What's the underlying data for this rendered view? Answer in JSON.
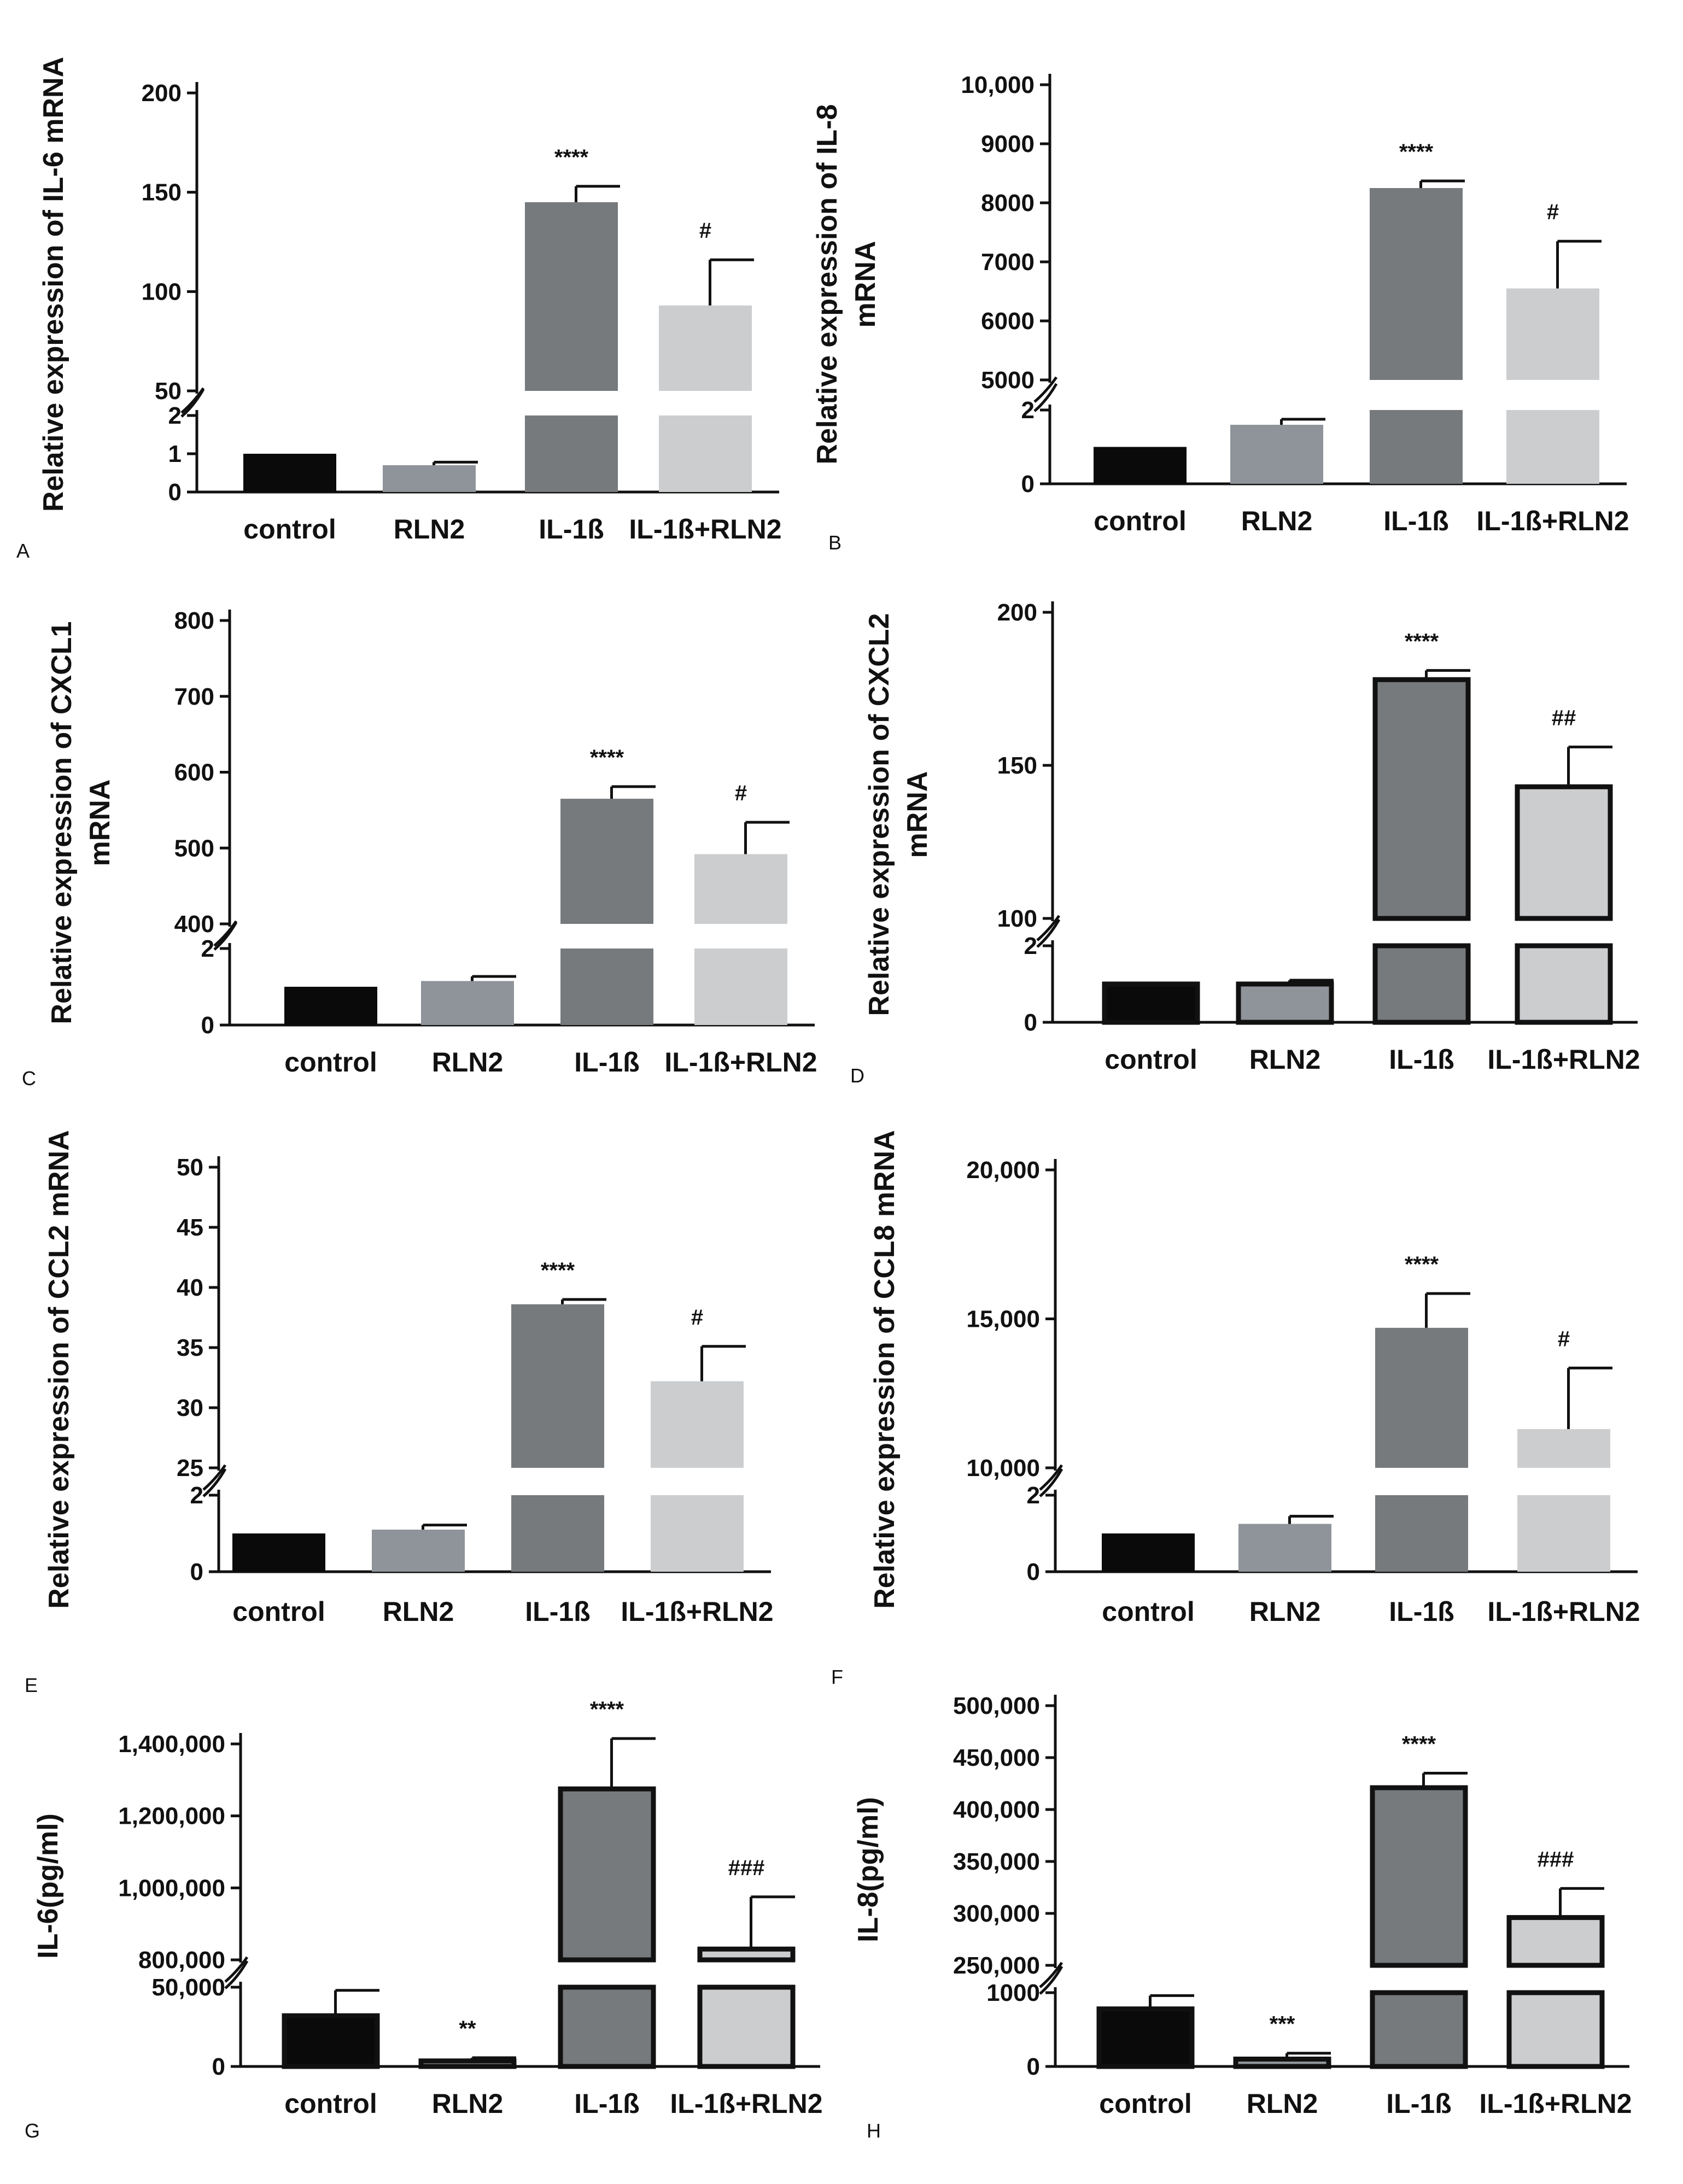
{
  "chart_data": [
    {
      "panel": "A",
      "type": "bar",
      "ylabel": [
        "Relative expression of IL-6 mRNA"
      ],
      "categories": [
        "control",
        "RLN2",
        "IL-1ß",
        "IL-1ß+RLN2"
      ],
      "values": [
        1,
        0.7,
        145,
        93
      ],
      "errors": [
        0,
        0.08,
        8,
        23
      ],
      "significance": [
        "",
        "",
        "****",
        "#"
      ],
      "colors": [
        "#0a0a0a",
        "#8e949a",
        "#767a7d",
        "#cbcdcf"
      ],
      "bar_style": "solid",
      "axis_break": {
        "low": 2,
        "high": 50
      },
      "low_ticks": [
        "0",
        "1",
        "2"
      ],
      "low_tick_values": [
        0,
        1,
        2
      ],
      "high_ticks": [
        "50",
        "100",
        "150",
        "200"
      ],
      "high_tick_values": [
        50,
        100,
        150,
        200
      ]
    },
    {
      "panel": "B",
      "type": "bar",
      "ylabel": [
        "Relative expression of IL-8",
        "mRNA"
      ],
      "categories": [
        "control",
        "RLN2",
        "IL-1ß",
        "IL-1ß+RLN2"
      ],
      "values": [
        1,
        1.6,
        8250,
        6550
      ],
      "errors": [
        0,
        0.15,
        120,
        800
      ],
      "significance": [
        "",
        "",
        "****",
        "#"
      ],
      "colors": [
        "#0a0a0a",
        "#8e949a",
        "#767a7d",
        "#cbcdcf"
      ],
      "bar_style": "solid",
      "axis_break": {
        "low": 2,
        "high": 5000
      },
      "low_ticks": [
        "0",
        "2"
      ],
      "low_tick_values": [
        0,
        2
      ],
      "high_ticks": [
        "5000",
        "6000",
        "7000",
        "8000",
        "9000",
        "10,000"
      ],
      "high_tick_values": [
        5000,
        6000,
        7000,
        8000,
        9000,
        10000
      ]
    },
    {
      "panel": "C",
      "type": "bar",
      "ylabel": [
        "Relative expression of CXCL1",
        "mRNA"
      ],
      "categories": [
        "control",
        "RLN2",
        "IL-1ß",
        "IL-1ß+RLN2"
      ],
      "values": [
        1,
        1.15,
        565,
        492
      ],
      "errors": [
        0,
        0.12,
        16,
        42
      ],
      "significance": [
        "",
        "",
        "****",
        "#"
      ],
      "colors": [
        "#0a0a0a",
        "#8e949a",
        "#767a7d",
        "#cbcdcf"
      ],
      "bar_style": "solid",
      "axis_break": {
        "low": 2,
        "high": 400
      },
      "low_ticks": [
        "0",
        "2"
      ],
      "low_tick_values": [
        0,
        2
      ],
      "high_ticks": [
        "400",
        "500",
        "600",
        "700",
        "800"
      ],
      "high_tick_values": [
        400,
        500,
        600,
        700,
        800
      ]
    },
    {
      "panel": "D",
      "type": "bar",
      "ylabel": [
        "Relative expression of CXCL2",
        "mRNA"
      ],
      "categories": [
        "control",
        "RLN2",
        "IL-1ß",
        "IL-1ß+RLN2"
      ],
      "values": [
        1,
        1,
        178,
        143
      ],
      "errors": [
        0,
        0.1,
        3,
        13
      ],
      "significance": [
        "",
        "",
        "****",
        "##"
      ],
      "colors": [
        "#0a0a0a",
        "#8e949a",
        "#767a7d",
        "#cbcdcf"
      ],
      "bar_style": "outlined",
      "axis_break": {
        "low": 2,
        "high": 100
      },
      "low_ticks": [
        "0",
        "2"
      ],
      "low_tick_values": [
        0,
        2
      ],
      "high_ticks": [
        "100",
        "150",
        "200"
      ],
      "high_tick_values": [
        100,
        150,
        200
      ]
    },
    {
      "panel": "E",
      "type": "bar",
      "ylabel": [
        "Relative expression of CCL2 mRNA"
      ],
      "categories": [
        "control",
        "RLN2",
        "IL-1ß",
        "IL-1ß+RLN2"
      ],
      "values": [
        1,
        1.1,
        38.6,
        32.2
      ],
      "errors": [
        0,
        0.12,
        0.4,
        2.9
      ],
      "significance": [
        "",
        "",
        "****",
        "#"
      ],
      "colors": [
        "#0a0a0a",
        "#8e949a",
        "#767a7d",
        "#cbcdcf"
      ],
      "bar_style": "solid",
      "axis_break": {
        "low": 2,
        "high": 25
      },
      "low_ticks": [
        "0",
        "2"
      ],
      "low_tick_values": [
        0,
        2
      ],
      "high_ticks": [
        "25",
        "30",
        "35",
        "40",
        "45",
        "50"
      ],
      "high_tick_values": [
        25,
        30,
        35,
        40,
        45,
        50
      ]
    },
    {
      "panel": "F",
      "type": "bar",
      "ylabel": [
        "Relative expression of CCL8 mRNA"
      ],
      "categories": [
        "control",
        "RLN2",
        "IL-1ß",
        "IL-1ß+RLN2"
      ],
      "values": [
        1,
        1.25,
        14700,
        11300
      ],
      "errors": [
        0,
        0.2,
        1150,
        2050
      ],
      "significance": [
        "",
        "",
        "****",
        "#"
      ],
      "colors": [
        "#0a0a0a",
        "#8e949a",
        "#767a7d",
        "#cbcdcf"
      ],
      "bar_style": "solid",
      "axis_break": {
        "low": 2,
        "high": 10000
      },
      "low_ticks": [
        "0",
        "2"
      ],
      "low_tick_values": [
        0,
        2
      ],
      "high_ticks": [
        "10,000",
        "15,000",
        "20,000"
      ],
      "high_tick_values": [
        10000,
        15000,
        20000
      ]
    },
    {
      "panel": "G",
      "type": "bar",
      "ylabel": [
        "IL-6(pg/ml)"
      ],
      "categories": [
        "control",
        "RLN2",
        "IL-1ß",
        "IL-1ß+RLN2"
      ],
      "values": [
        32000,
        3500,
        1275000,
        830000
      ],
      "errors": [
        16000,
        2000,
        140000,
        145000
      ],
      "significance": [
        "",
        "**",
        "****",
        "###"
      ],
      "colors": [
        "#0a0a0a",
        "#8e949a",
        "#767a7d",
        "#cbcdcf"
      ],
      "bar_style": "outlined",
      "axis_break": {
        "low": 50000,
        "high": 800000
      },
      "low_ticks": [
        "0",
        "50,000"
      ],
      "low_tick_values": [
        0,
        50000
      ],
      "high_ticks": [
        "800,000",
        "1,000,000",
        "1,200,000",
        "1,400,000"
      ],
      "high_tick_values": [
        800000,
        1000000,
        1200000,
        1400000
      ]
    },
    {
      "panel": "H",
      "type": "bar",
      "ylabel": [
        "IL-8(pg/ml)"
      ],
      "categories": [
        "control",
        "RLN2",
        "IL-1ß",
        "IL-1ß+RLN2"
      ],
      "values": [
        780,
        100,
        421000,
        296000
      ],
      "errors": [
        180,
        80,
        14000,
        28000
      ],
      "significance": [
        "",
        "***",
        "****",
        "###"
      ],
      "colors": [
        "#0a0a0a",
        "#8e949a",
        "#767a7d",
        "#cbcdcf"
      ],
      "bar_style": "outlined",
      "axis_break": {
        "low": 1000,
        "high": 250000
      },
      "low_ticks": [
        "0",
        "1000"
      ],
      "low_tick_values": [
        0,
        1000
      ],
      "high_ticks": [
        "250,000",
        "300,000",
        "350,000",
        "400,000",
        "450,000",
        "500,000"
      ],
      "high_tick_values": [
        250000,
        300000,
        350000,
        400000,
        450000,
        500000
      ]
    }
  ]
}
